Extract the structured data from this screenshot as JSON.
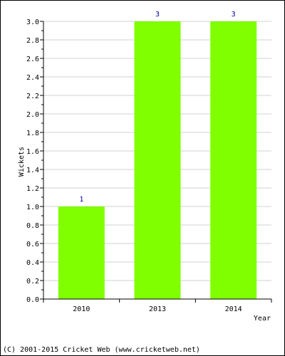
{
  "chart_data": {
    "type": "bar",
    "categories": [
      "2010",
      "2013",
      "2014"
    ],
    "values": [
      1,
      3,
      3
    ],
    "data_labels": [
      "1",
      "3",
      "3"
    ],
    "xlabel": "Year",
    "ylabel": "Wickets",
    "ylim": [
      0,
      3.0
    ],
    "ytick_labels": [
      "0.0",
      "0.2",
      "0.4",
      "0.6",
      "0.8",
      "1.0",
      "1.2",
      "1.4",
      "1.6",
      "1.8",
      "2.0",
      "2.2",
      "2.4",
      "2.6",
      "2.8",
      "3.0"
    ],
    "grid": true,
    "bar_color": "#80ff00",
    "data_label_color": "#0000aa"
  },
  "footer": {
    "copyright": "(C) 2001-2015 Cricket Web (www.cricketweb.net)"
  }
}
